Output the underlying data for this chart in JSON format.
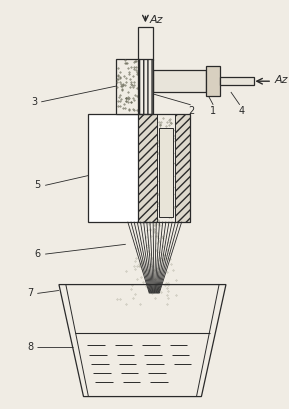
{
  "bg_color": "#f0ece4",
  "line_color": "#2a2a2a",
  "labels": {
    "Az_top": "Az",
    "Az_right": "Az",
    "num1": "1",
    "num2": "2",
    "num3": "3",
    "num4": "4",
    "num5": "5",
    "num6": "6",
    "num7": "7",
    "num8": "8"
  },
  "figsize": [
    2.89,
    4.09
  ],
  "dpi": 100
}
